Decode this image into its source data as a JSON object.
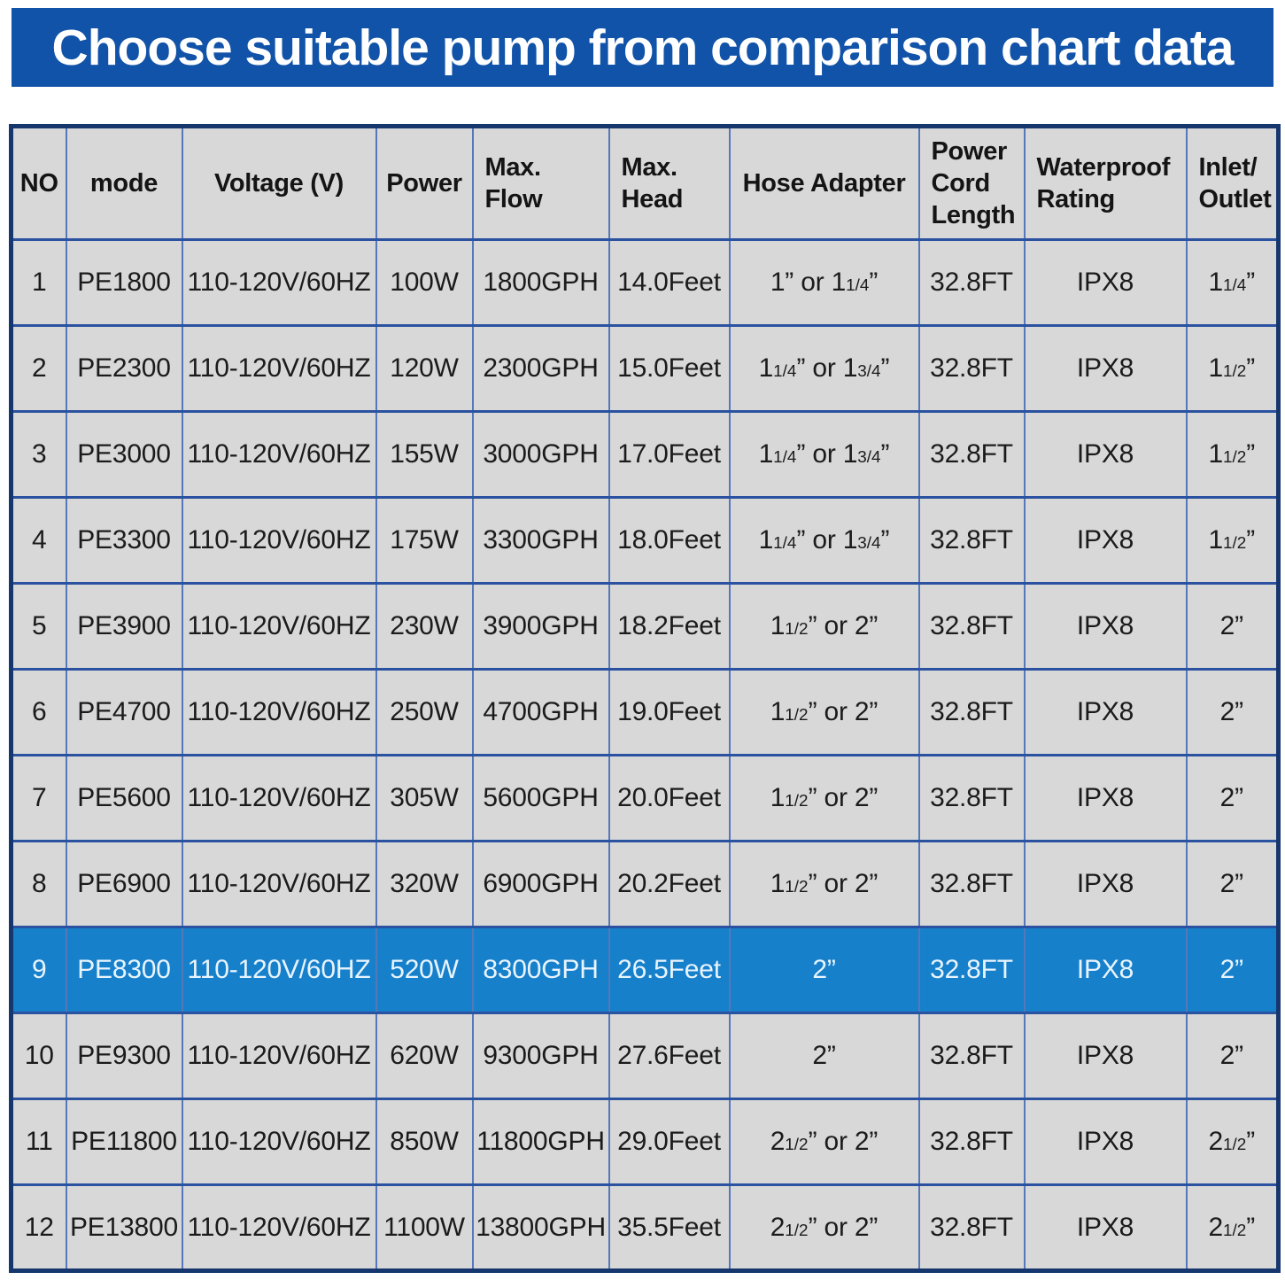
{
  "chart_data": {
    "type": "table",
    "title": "Choose suitable pump from comparison chart data",
    "highlighted_row_no": "9",
    "columns": [
      {
        "key": "no",
        "label": "NO",
        "align": "center"
      },
      {
        "key": "mode",
        "label": "mode",
        "align": "center"
      },
      {
        "key": "voltage",
        "label": "Voltage (V)",
        "align": "center"
      },
      {
        "key": "power",
        "label": "Power",
        "align": "center"
      },
      {
        "key": "max_flow",
        "label": "Max.\nFlow",
        "align": "left"
      },
      {
        "key": "max_head",
        "label": "Max.\nHead",
        "align": "left"
      },
      {
        "key": "hose_adapter",
        "label": "Hose Adapter",
        "align": "center"
      },
      {
        "key": "power_cord_length",
        "label": "Power\nCord\nLength",
        "align": "left"
      },
      {
        "key": "waterproof_rating",
        "label": "Waterproof\nRating",
        "align": "left"
      },
      {
        "key": "inlet_outlet",
        "label": "Inlet/\nOutlet",
        "align": "left"
      }
    ],
    "rows": [
      {
        "no": "1",
        "mode": "PE1800",
        "voltage": "110-120V/60HZ",
        "power": "100W",
        "max_flow": "1800GPH",
        "max_head": "14.0Feet",
        "hose_adapter": "1” or 1{1/4}”",
        "power_cord_length": "32.8FT",
        "waterproof_rating": "IPX8",
        "inlet_outlet": "1{1/4}”"
      },
      {
        "no": "2",
        "mode": "PE2300",
        "voltage": "110-120V/60HZ",
        "power": "120W",
        "max_flow": "2300GPH",
        "max_head": "15.0Feet",
        "hose_adapter": "1{1/4}” or 1{3/4}”",
        "power_cord_length": "32.8FT",
        "waterproof_rating": "IPX8",
        "inlet_outlet": "1{1/2}”"
      },
      {
        "no": "3",
        "mode": "PE3000",
        "voltage": "110-120V/60HZ",
        "power": "155W",
        "max_flow": "3000GPH",
        "max_head": "17.0Feet",
        "hose_adapter": "1{1/4}” or 1{3/4}”",
        "power_cord_length": "32.8FT",
        "waterproof_rating": "IPX8",
        "inlet_outlet": "1{1/2}”"
      },
      {
        "no": "4",
        "mode": "PE3300",
        "voltage": "110-120V/60HZ",
        "power": "175W",
        "max_flow": "3300GPH",
        "max_head": "18.0Feet",
        "hose_adapter": "1{1/4}” or 1{3/4}”",
        "power_cord_length": "32.8FT",
        "waterproof_rating": "IPX8",
        "inlet_outlet": "1{1/2}”"
      },
      {
        "no": "5",
        "mode": "PE3900",
        "voltage": "110-120V/60HZ",
        "power": "230W",
        "max_flow": "3900GPH",
        "max_head": "18.2Feet",
        "hose_adapter": "1{1/2}” or 2”",
        "power_cord_length": "32.8FT",
        "waterproof_rating": "IPX8",
        "inlet_outlet": "2”"
      },
      {
        "no": "6",
        "mode": "PE4700",
        "voltage": "110-120V/60HZ",
        "power": "250W",
        "max_flow": "4700GPH",
        "max_head": "19.0Feet",
        "hose_adapter": "1{1/2}” or 2”",
        "power_cord_length": "32.8FT",
        "waterproof_rating": "IPX8",
        "inlet_outlet": "2”"
      },
      {
        "no": "7",
        "mode": "PE5600",
        "voltage": "110-120V/60HZ",
        "power": "305W",
        "max_flow": "5600GPH",
        "max_head": "20.0Feet",
        "hose_adapter": "1{1/2}” or 2”",
        "power_cord_length": "32.8FT",
        "waterproof_rating": "IPX8",
        "inlet_outlet": "2”"
      },
      {
        "no": "8",
        "mode": "PE6900",
        "voltage": "110-120V/60HZ",
        "power": "320W",
        "max_flow": "6900GPH",
        "max_head": "20.2Feet",
        "hose_adapter": "1{1/2}” or 2”",
        "power_cord_length": "32.8FT",
        "waterproof_rating": "IPX8",
        "inlet_outlet": "2”"
      },
      {
        "no": "9",
        "mode": "PE8300",
        "voltage": "110-120V/60HZ",
        "power": "520W",
        "max_flow": "8300GPH",
        "max_head": "26.5Feet",
        "hose_adapter": "2”",
        "power_cord_length": "32.8FT",
        "waterproof_rating": "IPX8",
        "inlet_outlet": "2”"
      },
      {
        "no": "10",
        "mode": "PE9300",
        "voltage": "110-120V/60HZ",
        "power": "620W",
        "max_flow": "9300GPH",
        "max_head": "27.6Feet",
        "hose_adapter": "2”",
        "power_cord_length": "32.8FT",
        "waterproof_rating": "IPX8",
        "inlet_outlet": "2”"
      },
      {
        "no": "11",
        "mode": "PE11800",
        "voltage": "110-120V/60HZ",
        "power": "850W",
        "max_flow": "11800GPH",
        "max_head": "29.0Feet",
        "hose_adapter": "2{1/2}” or 2”",
        "power_cord_length": "32.8FT",
        "waterproof_rating": "IPX8",
        "inlet_outlet": "2{1/2}”"
      },
      {
        "no": "12",
        "mode": "PE13800",
        "voltage": "110-120V/60HZ",
        "power": "1100W",
        "max_flow": "13800GPH",
        "max_head": "35.5Feet",
        "hose_adapter": "2{1/2}” or 2”",
        "power_cord_length": "32.8FT",
        "waterproof_rating": "IPX8",
        "inlet_outlet": "2{1/2}”"
      }
    ],
    "colors": {
      "banner_bg": "#1153a8",
      "banner_text": "#ffffff",
      "cell_bg": "#d8d8d8",
      "highlight_bg": "#1780cb",
      "highlight_text": "#e8f4fd",
      "grid_vertical": "#5578ba",
      "grid_horizontal": "#2a52a0",
      "outer_border": "#16376e",
      "text": "#1b1b1b"
    }
  }
}
